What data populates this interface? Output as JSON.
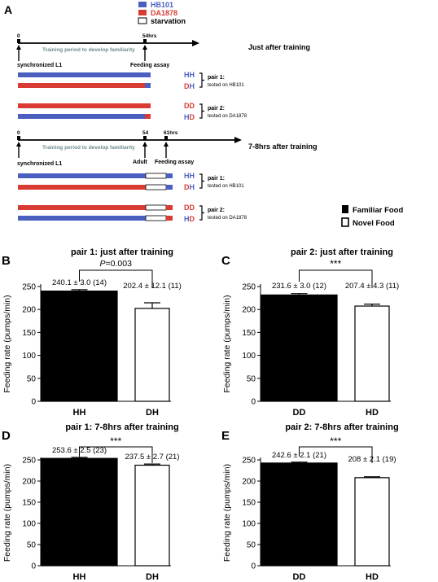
{
  "legend_top": {
    "items": [
      {
        "label": "HB101",
        "color": "#4a5fc0"
      },
      {
        "label": "DA1878",
        "color": "#d93b33"
      },
      {
        "label": "starvation",
        "color": "#ffffff"
      }
    ]
  },
  "panel_a": {
    "label": "A",
    "timeline1": {
      "start": "0",
      "end": "54hrs",
      "period": "Training period to develop familiarity",
      "left": "synchronized L1",
      "right": "Feeding assay",
      "title": "Just after training"
    },
    "timeline2": {
      "start": "0",
      "mid": "54",
      "end": "61hrs",
      "period": "Training period to develop familiarity",
      "left": "synchronized L1",
      "mid_label": "Adult",
      "right": "Feeding assay",
      "title": "7-8hrs after training"
    },
    "pairs": [
      {
        "title": "pair 1:",
        "sub": "tested on HB101",
        "codes": [
          "HH",
          "DH"
        ]
      },
      {
        "title": "pair 2:",
        "sub": "tested on DA1878",
        "codes": [
          "DD",
          "HD"
        ]
      }
    ],
    "colors": {
      "hb101": "#4a5fc0",
      "da1878": "#d93b33"
    },
    "food_legend": {
      "familiar": "Familiar Food",
      "novel": "Novel Food"
    }
  },
  "chart_data": [
    {
      "panel": "B",
      "type": "bar",
      "title": "pair 1: just after training",
      "categories": [
        "HH",
        "DH"
      ],
      "values": [
        240.1,
        202.4
      ],
      "errors": [
        3.0,
        12.1
      ],
      "n": [
        14,
        11
      ],
      "value_labels": [
        "240.1 ± 3.0 (14)",
        "202.4 ± 12.1 (11)"
      ],
      "ylabel": "Feeding rate (pumps/min)",
      "ylim": [
        0,
        250
      ],
      "yticks": [
        0,
        50,
        100,
        150,
        200,
        250
      ],
      "significance": "P=0.003",
      "fills": [
        "#000000",
        "#ffffff"
      ]
    },
    {
      "panel": "C",
      "type": "bar",
      "title": "pair 2: just after training",
      "categories": [
        "DD",
        "HD"
      ],
      "values": [
        231.6,
        207.4
      ],
      "errors": [
        3.0,
        4.3
      ],
      "n": [
        12,
        11
      ],
      "value_labels": [
        "231.6 ± 3.0 (12)",
        "207.4 ± 4.3 (11)"
      ],
      "ylabel": "Feeding rate (pumps/min)",
      "ylim": [
        0,
        250
      ],
      "yticks": [
        0,
        50,
        100,
        150,
        200,
        250
      ],
      "significance": "***",
      "fills": [
        "#000000",
        "#ffffff"
      ]
    },
    {
      "panel": "D",
      "type": "bar",
      "title": "pair 1: 7-8hrs after training",
      "categories": [
        "HH",
        "DH"
      ],
      "values": [
        253.6,
        237.5
      ],
      "errors": [
        2.5,
        2.7
      ],
      "n": [
        23,
        21
      ],
      "value_labels": [
        "253.6 ± 2.5 (23)",
        "237.5 ± 2.7 (21)"
      ],
      "ylabel": "Feeding rate (pumps/min)",
      "ylim": [
        0,
        250
      ],
      "yticks": [
        0,
        50,
        100,
        150,
        200,
        250
      ],
      "significance": "***",
      "fills": [
        "#000000",
        "#ffffff"
      ]
    },
    {
      "panel": "E",
      "type": "bar",
      "title": "pair 2: 7-8hrs after training",
      "categories": [
        "DD",
        "HD"
      ],
      "values": [
        242.6,
        208.0
      ],
      "errors": [
        2.1,
        2.1
      ],
      "n": [
        21,
        19
      ],
      "value_labels": [
        "242.6 ± 2.1 (21)",
        "208 ± 2.1 (19)"
      ],
      "ylabel": "Feeding rate (pumps/min)",
      "ylim": [
        0,
        250
      ],
      "yticks": [
        0,
        50,
        100,
        150,
        200,
        250
      ],
      "significance": "***",
      "fills": [
        "#000000",
        "#ffffff"
      ]
    }
  ]
}
